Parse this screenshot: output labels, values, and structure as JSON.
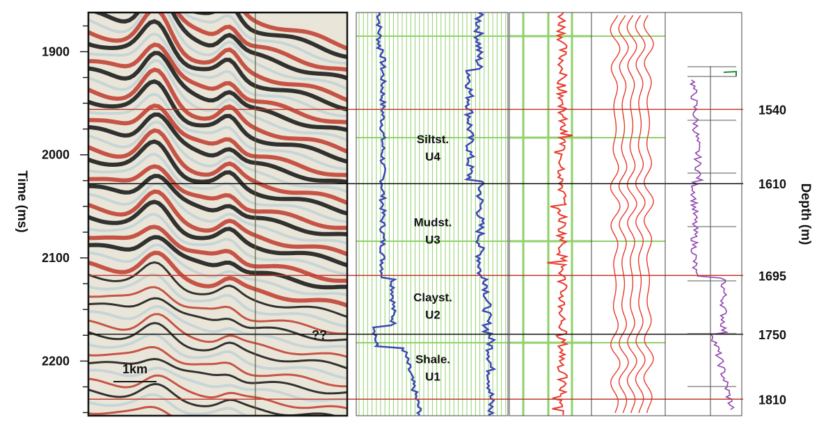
{
  "chart_data": {
    "type": "line",
    "left_axis": {
      "label": "Time (ms)",
      "ticks": [
        "1900",
        "2000",
        "2100",
        "2200"
      ],
      "tick_values": [
        1900,
        2000,
        2100,
        2200
      ],
      "range": [
        1862,
        2253
      ]
    },
    "right_axis": {
      "label": "Depth (m)",
      "ticks": [
        "1540",
        "1610",
        "1695",
        "1750",
        "1810"
      ],
      "tick_values": [
        1540,
        1610,
        1695,
        1750,
        1810
      ]
    },
    "horizons": [
      {
        "time_ms": 1956,
        "depth_m": 1540,
        "color": "#c0392b"
      },
      {
        "time_ms": 2028,
        "depth_m": 1610,
        "color": "#111111"
      },
      {
        "time_ms": 2117,
        "depth_m": 1695,
        "color": "#c0392b"
      },
      {
        "time_ms": 2174,
        "depth_m": 1750,
        "color": "#111111"
      },
      {
        "time_ms": 2237,
        "depth_m": 1810,
        "color": "#c0392b"
      }
    ],
    "units": [
      {
        "name": "Siltst.",
        "code": "U4",
        "time_top": 1956,
        "time_base": 2028
      },
      {
        "name": "Mudst.",
        "code": "U3",
        "time_top": 2028,
        "time_base": 2117
      },
      {
        "name": "Clayst.",
        "code": "U2",
        "time_top": 2117,
        "time_base": 2174
      },
      {
        "name": "Shale.",
        "code": "U1",
        "time_top": 2174,
        "time_base": 2237
      }
    ],
    "scale_bar": "1km",
    "annotation": "??",
    "colors": {
      "seismic_positive": "#c0392b",
      "seismic_negative": "#111111",
      "log_curve": "#3b47b3",
      "grid": "#8fd16a",
      "synthetic": "#e8392b",
      "velocity_curve": "#8e44ad"
    }
  }
}
